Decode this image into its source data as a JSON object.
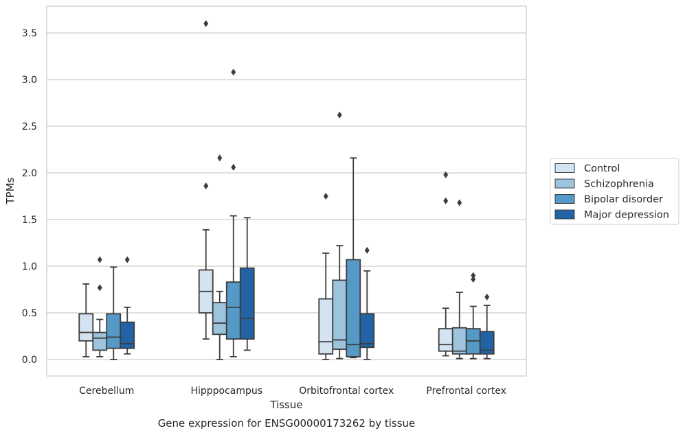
{
  "chart_data": {
    "type": "box",
    "title": "Gene expression for ENSG00000173262 by tissue",
    "xlabel": "Tissue",
    "ylabel": "TPMs",
    "ylim": [
      -0.18,
      3.77
    ],
    "yticks": [
      "0.0",
      "0.5",
      "1.0",
      "1.5",
      "2.0",
      "2.5",
      "3.0",
      "3.5"
    ],
    "grid": true,
    "legend": {
      "placement": "right"
    },
    "categories": [
      "Cerebellum",
      "Hipppocampus",
      "Orbitofrontal cortex",
      "Prefrontal cortex"
    ],
    "series": [
      {
        "name": "Control",
        "color": "#d4e3f2",
        "boxes": [
          {
            "whislo": 0.03,
            "q1": 0.2,
            "med": 0.29,
            "q3": 0.49,
            "whishi": 0.81,
            "fliers": []
          },
          {
            "whislo": 0.22,
            "q1": 0.5,
            "med": 0.73,
            "q3": 0.96,
            "whishi": 1.39,
            "fliers": [
              1.86,
              3.6
            ]
          },
          {
            "whislo": 0.0,
            "q1": 0.06,
            "med": 0.19,
            "q3": 0.65,
            "whishi": 1.14,
            "fliers": [
              1.75
            ]
          },
          {
            "whislo": 0.04,
            "q1": 0.09,
            "med": 0.16,
            "q3": 0.33,
            "whishi": 0.55,
            "fliers": [
              1.7,
              1.98
            ]
          }
        ]
      },
      {
        "name": "Schizophrenia",
        "color": "#9dc3dd",
        "boxes": [
          {
            "whislo": 0.03,
            "q1": 0.1,
            "med": 0.23,
            "q3": 0.29,
            "whishi": 0.43,
            "fliers": [
              0.77,
              1.07
            ]
          },
          {
            "whislo": 0.0,
            "q1": 0.27,
            "med": 0.39,
            "q3": 0.61,
            "whishi": 0.73,
            "fliers": [
              2.16
            ]
          },
          {
            "whislo": 0.01,
            "q1": 0.11,
            "med": 0.21,
            "q3": 0.85,
            "whishi": 1.22,
            "fliers": [
              2.62
            ]
          },
          {
            "whislo": 0.01,
            "q1": 0.06,
            "med": 0.09,
            "q3": 0.34,
            "whishi": 0.72,
            "fliers": [
              1.68
            ]
          }
        ]
      },
      {
        "name": "Bipolar disorder",
        "color": "#5599c6",
        "boxes": [
          {
            "whislo": 0.0,
            "q1": 0.12,
            "med": 0.24,
            "q3": 0.49,
            "whishi": 0.99,
            "fliers": []
          },
          {
            "whislo": 0.03,
            "q1": 0.22,
            "med": 0.56,
            "q3": 0.83,
            "whishi": 1.54,
            "fliers": [
              2.06,
              3.08
            ]
          },
          {
            "whislo": 0.02,
            "q1": 0.03,
            "med": 0.16,
            "q3": 1.07,
            "whishi": 2.16,
            "fliers": []
          },
          {
            "whislo": 0.01,
            "q1": 0.06,
            "med": 0.2,
            "q3": 0.33,
            "whishi": 0.57,
            "fliers": [
              0.86,
              0.9
            ]
          }
        ]
      },
      {
        "name": "Major depression",
        "color": "#2163a5",
        "boxes": [
          {
            "whislo": 0.06,
            "q1": 0.12,
            "med": 0.17,
            "q3": 0.4,
            "whishi": 0.56,
            "fliers": [
              1.07
            ]
          },
          {
            "whislo": 0.1,
            "q1": 0.22,
            "med": 0.44,
            "q3": 0.98,
            "whishi": 1.52,
            "fliers": []
          },
          {
            "whislo": 0.0,
            "q1": 0.13,
            "med": 0.17,
            "q3": 0.49,
            "whishi": 0.95,
            "fliers": [
              1.17
            ]
          },
          {
            "whislo": 0.01,
            "q1": 0.06,
            "med": 0.1,
            "q3": 0.3,
            "whishi": 0.58,
            "fliers": [
              0.67
            ]
          }
        ]
      }
    ]
  }
}
